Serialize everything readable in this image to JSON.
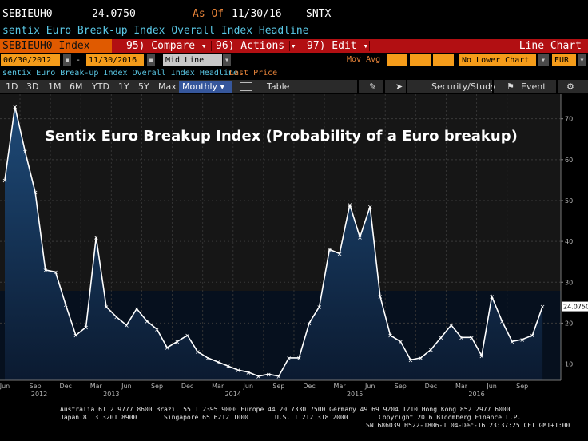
{
  "header": {
    "ticker_code": "SEBIEUH0",
    "price": "24.0750",
    "as_of_label": "As Of",
    "as_of_date": "11/30/16",
    "source": "SNTX",
    "description": "sentix Euro Break-up Index Overall Index Headline"
  },
  "command_bar": {
    "security": "SEBIEUH0 Index",
    "compare": "95) Compare",
    "actions": "96) Actions",
    "edit": "97) Edit",
    "chart_type": "Line Chart"
  },
  "date_bar": {
    "start_date": "06/30/2012",
    "end_date": "11/30/2016",
    "line_mode": "Mid Line",
    "mov_avg_label": "Mov Avg",
    "lower_chart": "No Lower Chart",
    "currency": "EUR"
  },
  "legend": {
    "headline": "sentix Euro Break-up Index Overall Index Headline",
    "series_label": "Last Price"
  },
  "toolbar": {
    "periods": [
      "1D",
      "3D",
      "1M",
      "6M",
      "YTD",
      "1Y",
      "5Y",
      "Max"
    ],
    "frequency": "Monthly",
    "table": "Table",
    "security_study": "Security/Study",
    "event": "Event"
  },
  "chart_data": {
    "type": "area",
    "title": "Sentix Euro Breakup Index (Probability of a Euro breakup)",
    "ylim": [
      6,
      76
    ],
    "yticks": [
      10,
      20,
      30,
      40,
      50,
      60,
      70
    ],
    "last_value_label": "24.0750",
    "x_month_labels": [
      "Jun",
      "Sep",
      "Dec",
      "Mar",
      "Jun",
      "Sep",
      "Dec",
      "Mar",
      "Jun",
      "Sep",
      "Dec",
      "Mar",
      "Jun",
      "Sep",
      "Dec",
      "Mar",
      "Jun",
      "Sep"
    ],
    "x_year_labels": [
      "2012",
      "2013",
      "2014",
      "2015",
      "2016"
    ],
    "series": [
      {
        "x": [
          "2012-06",
          "2012-07",
          "2012-08",
          "2012-09",
          "2012-10",
          "2012-11",
          "2012-12",
          "2013-01",
          "2013-02",
          "2013-03",
          "2013-04",
          "2013-05",
          "2013-06",
          "2013-07",
          "2013-08",
          "2013-09",
          "2013-10",
          "2013-11",
          "2013-12",
          "2014-01",
          "2014-02",
          "2014-03",
          "2014-04",
          "2014-05",
          "2014-06",
          "2014-07",
          "2014-08",
          "2014-09",
          "2014-10",
          "2014-11",
          "2014-12",
          "2015-01",
          "2015-02",
          "2015-03",
          "2015-04",
          "2015-05",
          "2015-06",
          "2015-07",
          "2015-08",
          "2015-09",
          "2015-10",
          "2015-11",
          "2015-12",
          "2016-01",
          "2016-02",
          "2016-03",
          "2016-04",
          "2016-05",
          "2016-06",
          "2016-07",
          "2016-08",
          "2016-09",
          "2016-10",
          "2016-11"
        ],
        "values": [
          55,
          73,
          62,
          52,
          33,
          32.5,
          24.5,
          17,
          19,
          41,
          24,
          21.5,
          19.5,
          23.5,
          20.5,
          18.5,
          14,
          15.5,
          17,
          13,
          11.5,
          10.5,
          9.5,
          8.5,
          8,
          7,
          7.5,
          7,
          11.5,
          11.5,
          20,
          24,
          38,
          37,
          49,
          41,
          48.5,
          26.5,
          17,
          15.5,
          11,
          11.5,
          13.5,
          16.5,
          19.5,
          16.5,
          16.5,
          12,
          26.5,
          20.5,
          15.5,
          16,
          17,
          24.07
        ]
      }
    ]
  },
  "footer": {
    "line1": "Australia 61 2 9777 8600 Brazil 5511 2395 9000 Europe 44 20 7330 7500 Germany 49 69 9204 1210 Hong Kong 852 2977 6000",
    "line2a": "Japan 81 3 3201 8900",
    "line2b": "Singapore 65 6212 1000",
    "line2c": "U.S. 1 212 318 2000",
    "line2d": "Copyright 2016 Bloomberg Finance L.P.",
    "line3": "SN 686039 H522-1806-1 04-Dec-16 23:37:25 CET  GMT+1:00"
  }
}
